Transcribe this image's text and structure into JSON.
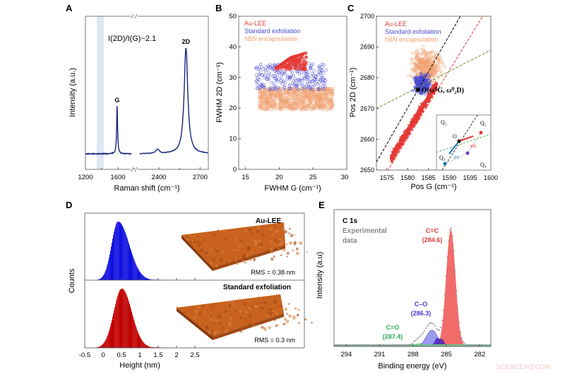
{
  "watermark": "SCIENCEAQ.COM",
  "chart_data": [
    {
      "panel": "A",
      "type": "line",
      "xlabel": "Raman shift (cm⁻¹)",
      "ylabel": "Intensity (a.u.)",
      "annotation": "I(2D)/I(G)~2.1",
      "x_axis_break": [
        1800,
        2220
      ],
      "xlim_left": [
        1200,
        1800
      ],
      "xlim_right": [
        2220,
        2760
      ],
      "xticks": [
        "1200",
        "1600",
        "2400",
        "2700"
      ],
      "shaded_band": [
        1340,
        1425
      ],
      "line_color": "#1a237e",
      "band_color": "#dce8f5",
      "peaks": [
        {
          "label": "G",
          "position": 1590,
          "intensity": 0.45,
          "width": 14
        },
        {
          "label": "",
          "position": 2390,
          "intensity": 0.04,
          "width": 30
        },
        {
          "label": "2D",
          "position": 2597,
          "intensity": 1.0,
          "width": 32
        }
      ]
    },
    {
      "panel": "B",
      "type": "scatter",
      "xlabel": "FWHM G (cm⁻¹)",
      "ylabel": "FWHM 2D (cm⁻¹)",
      "xlim": [
        14,
        30
      ],
      "ylim": [
        0,
        50
      ],
      "xticks": [
        "15",
        "20",
        "25",
        "30"
      ],
      "yticks": [
        "0",
        "10",
        "20",
        "30",
        "40",
        "50"
      ],
      "legend_position": "top-left",
      "series": [
        {
          "name": "hBN encapsulation",
          "color": "#f0a070",
          "x_range": [
            17,
            28
          ],
          "y_range": [
            19.5,
            26.5
          ],
          "n": 900
        },
        {
          "name": "Standard exfoliation",
          "color": "#4a4ad0",
          "x_range": [
            16.5,
            27
          ],
          "y_range": [
            26,
            34.5
          ],
          "n": 260
        },
        {
          "name": "Au-LEE",
          "color": "#e53935",
          "x_range": [
            19.5,
            24
          ],
          "y_range": [
            32.5,
            39
          ],
          "n": 220
        }
      ]
    },
    {
      "panel": "C",
      "type": "scatter",
      "xlabel": "Pos G (cm⁻¹)",
      "ylabel": "Pos 2D (cm⁻¹)",
      "xlim": [
        1572.5,
        1600
      ],
      "ylim": [
        2650,
        2700
      ],
      "xticks": [
        "1575",
        "1580",
        "1585",
        "1590",
        "1595",
        "1600"
      ],
      "yticks": [
        "2650",
        "2660",
        "2670",
        "2680",
        "2690",
        "2700"
      ],
      "legend_position": "top-left",
      "series": [
        {
          "name": "Au-LEE",
          "color": "#e53935",
          "x_range": [
            1576,
            1587
          ],
          "slope": 2.2,
          "n": 700
        },
        {
          "name": "Standard exfoliation",
          "color": "#4a4ad0",
          "x_range": [
            1581,
            1586
          ],
          "y_range": [
            2674,
            2682
          ],
          "n": 350
        },
        {
          "name": "hBN encapsulation",
          "color": "#f0a070",
          "x_range": [
            1580,
            1590
          ],
          "y_range": [
            2677,
            2691
          ],
          "n": 450
        }
      ],
      "origin": {
        "label": "O(ω⁰G, ω⁰₂D)",
        "x": 1582.5,
        "y": 2676.1
      },
      "reference_lines": [
        {
          "color": "#000000",
          "slope": 2.35,
          "through": [
            1582.5,
            2676.1
          ]
        },
        {
          "color": "#e53935",
          "slope": 2.2,
          "through": [
            1575.3,
            2650
          ]
        },
        {
          "color": "#6b8e3a",
          "slope": 0.69,
          "through": [
            1572.5,
            2670
          ]
        }
      ],
      "inset": {
        "labels": [
          "Q₁",
          "Q₂",
          "Q₃",
          "Q₄",
          "O",
          "eʜ",
          "eᴛ"
        ]
      }
    },
    {
      "panel": "D",
      "type": "bar",
      "xlabel": "Height (nm)",
      "ylabel": "Counts",
      "xlim": [
        -0.5,
        5.48
      ],
      "xticks": [
        "-0.5",
        "0",
        "0.5",
        "1",
        "1.5",
        "2",
        "2.5"
      ],
      "series": [
        {
          "name": "Au-LEE",
          "color": "#1010e0",
          "peak": 0.4,
          "sigma_left": 0.18,
          "sigma_right": 0.3,
          "rms": "RMS = 0.38 nm"
        },
        {
          "name": "Standard exfoliation",
          "color": "#c00000",
          "peak": 0.5,
          "sigma_left": 0.22,
          "sigma_right": 0.27,
          "rms": "RMS = 0.3 nm"
        }
      ],
      "afm_color": "#c8621e"
    },
    {
      "panel": "E",
      "type": "area",
      "title": "C 1s",
      "legend": "Experimental data",
      "legend_lines": [
        "Experimental",
        "data"
      ],
      "xlabel": "Binding energy (eV)",
      "ylabel": "Intensity (a.u)",
      "xlim": [
        295.1,
        281
      ],
      "xticks": [
        "294",
        "291",
        "288",
        "285",
        "282"
      ],
      "peaks": [
        {
          "label": "C=C",
          "position": 284.6,
          "position_label": "(284.6)",
          "height": 1.0,
          "sigma": 0.42,
          "color": "#f26b6b",
          "label_color": "#e53935"
        },
        {
          "label": "C–O",
          "position": 286.3,
          "position_label": "(286.3)",
          "height": 0.14,
          "sigma": 0.5,
          "color": "#9b9bf0",
          "label_color": "#4a3ad0"
        },
        {
          "label": "C=O",
          "position": 287.4,
          "position_label": "(287.4)",
          "height": 0.03,
          "sigma": 0.5,
          "color": "#9ee0a8",
          "label_color": "#2eaa5a"
        }
      ],
      "data_color": "#999999"
    }
  ]
}
